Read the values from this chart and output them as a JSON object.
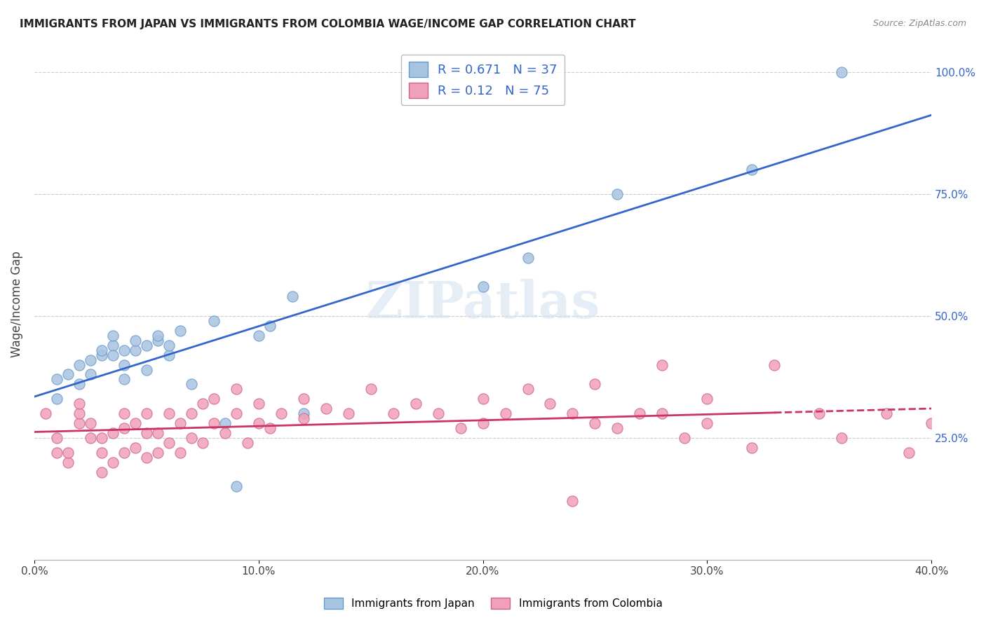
{
  "title": "IMMIGRANTS FROM JAPAN VS IMMIGRANTS FROM COLOMBIA WAGE/INCOME GAP CORRELATION CHART",
  "source": "Source: ZipAtlas.com",
  "xlabel": "",
  "ylabel": "Wage/Income Gap",
  "xlim": [
    0.0,
    0.4
  ],
  "ylim": [
    0.0,
    1.05
  ],
  "xtick_labels": [
    "0.0%",
    "10.0%",
    "20.0%",
    "30.0%",
    "40.0%"
  ],
  "xtick_vals": [
    0.0,
    0.1,
    0.2,
    0.3,
    0.4
  ],
  "ytick_labels": [
    "25.0%",
    "50.0%",
    "75.0%",
    "100.0%"
  ],
  "ytick_vals": [
    0.25,
    0.5,
    0.75,
    1.0
  ],
  "japan_color": "#a8c4e0",
  "japan_edge_color": "#6699cc",
  "colombia_color": "#f0a0b8",
  "colombia_edge_color": "#cc6688",
  "japan_R": 0.671,
  "japan_N": 37,
  "colombia_R": 0.12,
  "colombia_N": 75,
  "japan_line_color": "#3366cc",
  "colombia_line_color": "#cc3366",
  "watermark": "ZIPatlas",
  "background_color": "#ffffff",
  "grid_color": "#cccccc",
  "japan_scatter_x": [
    0.01,
    0.01,
    0.015,
    0.02,
    0.02,
    0.025,
    0.025,
    0.03,
    0.03,
    0.035,
    0.035,
    0.035,
    0.04,
    0.04,
    0.04,
    0.045,
    0.045,
    0.05,
    0.05,
    0.055,
    0.055,
    0.06,
    0.06,
    0.065,
    0.07,
    0.08,
    0.085,
    0.09,
    0.1,
    0.105,
    0.115,
    0.12,
    0.2,
    0.22,
    0.26,
    0.32,
    0.36
  ],
  "japan_scatter_y": [
    0.33,
    0.37,
    0.38,
    0.36,
    0.4,
    0.41,
    0.38,
    0.42,
    0.43,
    0.44,
    0.42,
    0.46,
    0.37,
    0.4,
    0.43,
    0.43,
    0.45,
    0.39,
    0.44,
    0.45,
    0.46,
    0.42,
    0.44,
    0.47,
    0.36,
    0.49,
    0.28,
    0.15,
    0.46,
    0.48,
    0.54,
    0.3,
    0.56,
    0.62,
    0.75,
    0.8,
    1.0
  ],
  "colombia_scatter_x": [
    0.005,
    0.01,
    0.01,
    0.015,
    0.015,
    0.02,
    0.02,
    0.02,
    0.025,
    0.025,
    0.03,
    0.03,
    0.03,
    0.035,
    0.035,
    0.04,
    0.04,
    0.04,
    0.045,
    0.045,
    0.05,
    0.05,
    0.05,
    0.055,
    0.055,
    0.06,
    0.06,
    0.065,
    0.065,
    0.07,
    0.07,
    0.075,
    0.075,
    0.08,
    0.08,
    0.085,
    0.09,
    0.09,
    0.095,
    0.1,
    0.1,
    0.105,
    0.11,
    0.12,
    0.12,
    0.13,
    0.14,
    0.15,
    0.16,
    0.17,
    0.18,
    0.19,
    0.2,
    0.2,
    0.21,
    0.22,
    0.23,
    0.24,
    0.24,
    0.25,
    0.25,
    0.26,
    0.27,
    0.28,
    0.28,
    0.29,
    0.3,
    0.3,
    0.32,
    0.33,
    0.35,
    0.36,
    0.38,
    0.39,
    0.4
  ],
  "colombia_scatter_y": [
    0.3,
    0.22,
    0.25,
    0.2,
    0.22,
    0.28,
    0.3,
    0.32,
    0.25,
    0.28,
    0.18,
    0.22,
    0.25,
    0.2,
    0.26,
    0.22,
    0.27,
    0.3,
    0.23,
    0.28,
    0.21,
    0.26,
    0.3,
    0.22,
    0.26,
    0.24,
    0.3,
    0.22,
    0.28,
    0.25,
    0.3,
    0.24,
    0.32,
    0.28,
    0.33,
    0.26,
    0.3,
    0.35,
    0.24,
    0.28,
    0.32,
    0.27,
    0.3,
    0.29,
    0.33,
    0.31,
    0.3,
    0.35,
    0.3,
    0.32,
    0.3,
    0.27,
    0.28,
    0.33,
    0.3,
    0.35,
    0.32,
    0.3,
    0.12,
    0.28,
    0.36,
    0.27,
    0.3,
    0.3,
    0.4,
    0.25,
    0.28,
    0.33,
    0.23,
    0.4,
    0.3,
    0.25,
    0.3,
    0.22,
    0.28
  ]
}
